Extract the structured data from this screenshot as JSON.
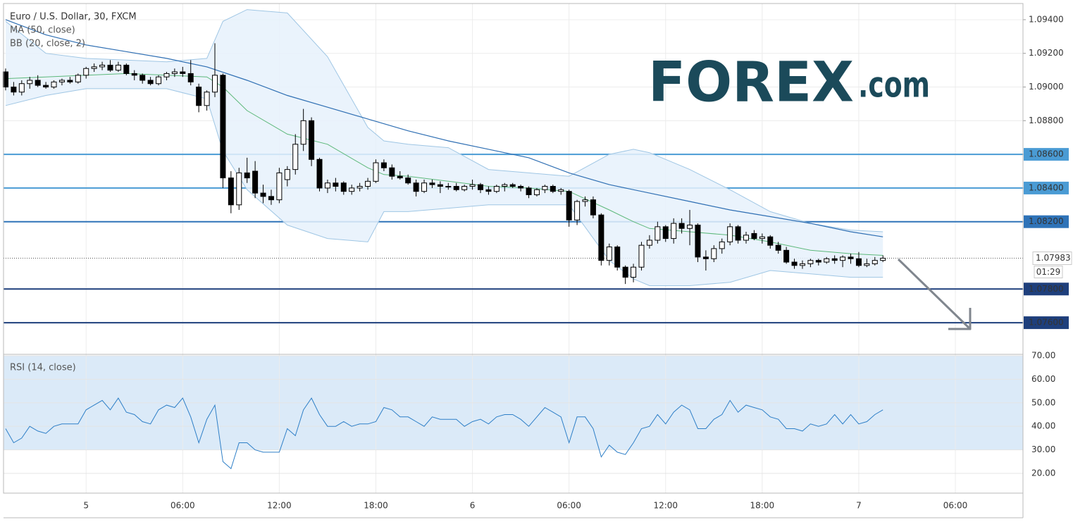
{
  "chart_data": {
    "type": "candlestick",
    "title": "Euro / U.S. Dollar, 30, FXCM",
    "brand": {
      "name": "FOREX",
      "suffix": ".com"
    },
    "xlim": [
      -0.26,
      126.4
    ],
    "xticks": [
      {
        "value": 10,
        "label": "5"
      },
      {
        "value": 22,
        "label": "06:00"
      },
      {
        "value": 34,
        "label": "12:00"
      },
      {
        "value": 46,
        "label": "18:00"
      },
      {
        "value": 58,
        "label": "6"
      },
      {
        "value": 70,
        "label": "06:00"
      },
      {
        "value": 82,
        "label": "12:00"
      },
      {
        "value": 94,
        "label": "18:00"
      },
      {
        "value": 106,
        "label": "7"
      },
      {
        "value": 118,
        "label": "06:00"
      }
    ],
    "ylim": [
      1.07412,
      1.09496
    ],
    "yticks": [
      {
        "value": 1.094,
        "label": "1.09400"
      },
      {
        "value": 1.092,
        "label": "1.09200"
      },
      {
        "value": 1.09,
        "label": "1.09000"
      },
      {
        "value": 1.088,
        "label": "1.08800"
      },
      {
        "value": 1.086,
        "label": "1.08600"
      },
      {
        "value": 1.084,
        "label": "1.08400"
      },
      {
        "value": 1.082,
        "label": "1.08200"
      },
      {
        "value": 1.078,
        "label": "1.07800"
      },
      {
        "value": 1.076,
        "label": "1.07600"
      }
    ],
    "grid": true,
    "up_color": "#ffffff",
    "down_color": "#000000",
    "levels": [
      {
        "value": 1.086,
        "color": "#4a9bd4"
      },
      {
        "value": 1.084,
        "color": "#4a9bd4"
      },
      {
        "value": 1.082,
        "color": "#2f73b8"
      },
      {
        "value": 1.078,
        "color": "#1e3f7c"
      },
      {
        "value": 1.076,
        "color": "#1e3f7c"
      }
    ],
    "last_price": 1.07983,
    "countdown": "01:29",
    "ohlc": [
      [
        1.0909,
        1.0911,
        1.0898,
        1.09
      ],
      [
        1.09,
        1.0903,
        1.0895,
        1.0897
      ],
      [
        1.0897,
        1.0904,
        1.0895,
        1.0902
      ],
      [
        1.0902,
        1.0906,
        1.0899,
        1.0904
      ],
      [
        1.0904,
        1.0907,
        1.09,
        1.0901
      ],
      [
        1.0901,
        1.0903,
        1.0899,
        1.09
      ],
      [
        1.09,
        1.0904,
        1.0899,
        1.0903
      ],
      [
        1.0903,
        1.0905,
        1.0901,
        1.0904
      ],
      [
        1.0904,
        1.0906,
        1.0902,
        1.0903
      ],
      [
        1.0903,
        1.0908,
        1.0902,
        1.0907
      ],
      [
        1.0907,
        1.0912,
        1.0905,
        1.0911
      ],
      [
        1.0911,
        1.0914,
        1.0909,
        1.0912
      ],
      [
        1.0912,
        1.0915,
        1.091,
        1.0913
      ],
      [
        1.0913,
        1.0916,
        1.0909,
        1.091
      ],
      [
        1.091,
        1.0915,
        1.0909,
        1.0913
      ],
      [
        1.0913,
        1.0914,
        1.0907,
        1.0908
      ],
      [
        1.0908,
        1.091,
        1.0904,
        1.0907
      ],
      [
        1.0907,
        1.0908,
        1.0902,
        1.0904
      ],
      [
        1.0904,
        1.0906,
        1.0901,
        1.0902
      ],
      [
        1.0902,
        1.0907,
        1.0901,
        1.0906
      ],
      [
        1.0906,
        1.0909,
        1.0904,
        1.0908
      ],
      [
        1.0908,
        1.0911,
        1.0906,
        1.0909
      ],
      [
        1.0909,
        1.0912,
        1.0906,
        1.0908
      ],
      [
        1.0908,
        1.0916,
        1.0901,
        1.0903
      ],
      [
        1.09,
        1.0902,
        1.0885,
        1.0889
      ],
      [
        1.0889,
        1.0898,
        1.0886,
        1.0897
      ],
      [
        1.0897,
        1.0926,
        1.0894,
        1.0907
      ],
      [
        1.0907,
        1.0908,
        1.084,
        1.0846
      ],
      [
        1.0846,
        1.085,
        1.0825,
        1.083
      ],
      [
        1.083,
        1.0852,
        1.0827,
        1.0849
      ],
      [
        1.0849,
        1.0858,
        1.0843,
        1.0846
      ],
      [
        1.085,
        1.0856,
        1.0834,
        1.0837
      ],
      [
        1.0837,
        1.0842,
        1.0831,
        1.0835
      ],
      [
        1.0835,
        1.0839,
        1.083,
        1.0833
      ],
      [
        1.0833,
        1.0852,
        1.0831,
        1.0849
      ],
      [
        1.0845,
        1.0853,
        1.0841,
        1.0851
      ],
      [
        1.0851,
        1.0872,
        1.0848,
        1.0866
      ],
      [
        1.0866,
        1.0887,
        1.0862,
        1.088
      ],
      [
        1.088,
        1.0882,
        1.0853,
        1.0857
      ],
      [
        1.0857,
        1.0858,
        1.0838,
        1.084
      ],
      [
        1.084,
        1.0845,
        1.0837,
        1.0843
      ],
      [
        1.0843,
        1.0846,
        1.0838,
        1.0841
      ],
      [
        1.0843,
        1.0844,
        1.0836,
        1.0838
      ],
      [
        1.0838,
        1.0842,
        1.0836,
        1.084
      ],
      [
        1.084,
        1.0843,
        1.0838,
        1.0841
      ],
      [
        1.0841,
        1.0846,
        1.0839,
        1.0844
      ],
      [
        1.0844,
        1.0857,
        1.0843,
        1.0855
      ],
      [
        1.0855,
        1.0857,
        1.085,
        1.0852
      ],
      [
        1.0852,
        1.0854,
        1.0845,
        1.0847
      ],
      [
        1.0847,
        1.085,
        1.0845,
        1.0846
      ],
      [
        1.0846,
        1.0848,
        1.0842,
        1.0843
      ],
      [
        1.0843,
        1.0845,
        1.0835,
        1.0838
      ],
      [
        1.0838,
        1.0845,
        1.0837,
        1.0843
      ],
      [
        1.0843,
        1.0845,
        1.084,
        1.0842
      ],
      [
        1.0842,
        1.0844,
        1.0837,
        1.0841
      ],
      [
        1.0841,
        1.0843,
        1.0839,
        1.0841
      ],
      [
        1.0841,
        1.0843,
        1.0838,
        1.0839
      ],
      [
        1.0839,
        1.0842,
        1.0838,
        1.0841
      ],
      [
        1.0841,
        1.0845,
        1.0839,
        1.0842
      ],
      [
        1.0842,
        1.0843,
        1.0837,
        1.0839
      ],
      [
        1.0839,
        1.0841,
        1.0836,
        1.0838
      ],
      [
        1.0838,
        1.0842,
        1.0837,
        1.0841
      ],
      [
        1.0841,
        1.0843,
        1.0838,
        1.0842
      ],
      [
        1.0842,
        1.0843,
        1.084,
        1.0841
      ],
      [
        1.0841,
        1.0842,
        1.0838,
        1.084
      ],
      [
        1.084,
        1.0841,
        1.0834,
        1.0836
      ],
      [
        1.0836,
        1.084,
        1.0835,
        1.0839
      ],
      [
        1.0839,
        1.0842,
        1.0837,
        1.0841
      ],
      [
        1.0841,
        1.0842,
        1.0837,
        1.0838
      ],
      [
        1.0838,
        1.084,
        1.0836,
        1.0839
      ],
      [
        1.0838,
        1.0839,
        1.0817,
        1.0821
      ],
      [
        1.0821,
        1.0833,
        1.0818,
        1.0832
      ],
      [
        1.0832,
        1.0835,
        1.0829,
        1.0833
      ],
      [
        1.0833,
        1.0835,
        1.0822,
        1.0824
      ],
      [
        1.0824,
        1.0825,
        1.0794,
        1.0797
      ],
      [
        1.0797,
        1.0807,
        1.0794,
        1.0805
      ],
      [
        1.0805,
        1.0806,
        1.0791,
        1.0793
      ],
      [
        1.0793,
        1.0794,
        1.0783,
        1.0787
      ],
      [
        1.0787,
        1.0795,
        1.0784,
        1.0793
      ],
      [
        1.0793,
        1.0808,
        1.0791,
        1.0806
      ],
      [
        1.0806,
        1.0812,
        1.0804,
        1.0809
      ],
      [
        1.0809,
        1.082,
        1.0807,
        1.0817
      ],
      [
        1.0817,
        1.0818,
        1.0808,
        1.081
      ],
      [
        1.081,
        1.0822,
        1.0807,
        1.0819
      ],
      [
        1.0819,
        1.0822,
        1.0813,
        1.0816
      ],
      [
        1.0816,
        1.0827,
        1.0806,
        1.0818
      ],
      [
        1.0818,
        1.0819,
        1.0796,
        1.0799
      ],
      [
        1.0799,
        1.0803,
        1.0791,
        1.0798
      ],
      [
        1.0798,
        1.0806,
        1.0796,
        1.0804
      ],
      [
        1.0804,
        1.081,
        1.0801,
        1.0808
      ],
      [
        1.0808,
        1.0819,
        1.0806,
        1.0817
      ],
      [
        1.0817,
        1.0818,
        1.0807,
        1.0809
      ],
      [
        1.0809,
        1.0814,
        1.0807,
        1.0812
      ],
      [
        1.0813,
        1.0815,
        1.0809,
        1.081
      ],
      [
        1.081,
        1.0813,
        1.0807,
        1.0811
      ],
      [
        1.0811,
        1.0812,
        1.0804,
        1.0806
      ],
      [
        1.0806,
        1.0808,
        1.0801,
        1.0803
      ],
      [
        1.0803,
        1.0805,
        1.0795,
        1.0796
      ],
      [
        1.0796,
        1.0798,
        1.0792,
        1.0794
      ],
      [
        1.0794,
        1.0797,
        1.0792,
        1.0795
      ],
      [
        1.0795,
        1.0798,
        1.0793,
        1.0797
      ],
      [
        1.0797,
        1.0798,
        1.0794,
        1.0796
      ],
      [
        1.0796,
        1.0799,
        1.0795,
        1.0798
      ],
      [
        1.0798,
        1.08,
        1.0795,
        1.0797
      ],
      [
        1.0797,
        1.08,
        1.0793,
        1.0799
      ],
      [
        1.0799,
        1.0801,
        1.0795,
        1.0798
      ],
      [
        1.0798,
        1.0802,
        1.0793,
        1.0794
      ],
      [
        1.0794,
        1.0798,
        1.0793,
        1.0795
      ],
      [
        1.0795,
        1.0799,
        1.0794,
        1.0797
      ],
      [
        1.0797,
        1.08,
        1.0796,
        1.07983
      ]
    ],
    "ma": {
      "label": "MA (50, close)",
      "color": "#2f6fb3",
      "x": [
        0,
        5,
        10,
        15,
        20,
        25,
        30,
        35,
        40,
        45,
        50,
        55,
        60,
        65,
        70,
        75,
        80,
        85,
        90,
        95,
        100,
        105,
        109
      ],
      "values": [
        1.094,
        1.0931,
        1.0925,
        1.0921,
        1.0917,
        1.0912,
        1.0904,
        1.0895,
        1.0888,
        1.0881,
        1.0874,
        1.0868,
        1.0863,
        1.0858,
        1.0849,
        1.0842,
        1.0837,
        1.0832,
        1.0827,
        1.0823,
        1.0819,
        1.0814,
        1.0811
      ]
    },
    "bb": {
      "label": "BB (20, close, 2)",
      "basis_color": "#5cb87a",
      "band_color": "#9fc6e4",
      "fill": "#e6f1fb",
      "x": [
        0,
        5,
        10,
        15,
        20,
        25,
        27,
        30,
        35,
        40,
        45,
        47,
        50,
        55,
        60,
        65,
        70,
        75,
        78,
        80,
        85,
        90,
        95,
        100,
        105,
        109
      ],
      "basis": [
        1.0905,
        1.0906,
        1.0907,
        1.0908,
        1.0907,
        1.0906,
        1.09,
        1.0886,
        1.0872,
        1.0866,
        1.0852,
        1.0848,
        1.0847,
        1.0844,
        1.0841,
        1.084,
        1.0838,
        1.0827,
        1.082,
        1.0816,
        1.0814,
        1.0812,
        1.0808,
        1.0803,
        1.0801,
        1.08
      ],
      "upper": [
        1.0939,
        1.092,
        1.0917,
        1.0916,
        1.0915,
        1.0917,
        1.0939,
        1.0946,
        1.0944,
        1.0918,
        1.0876,
        1.0868,
        1.0866,
        1.0864,
        1.0851,
        1.0849,
        1.0847,
        1.086,
        1.0863,
        1.0861,
        1.0851,
        1.0839,
        1.0826,
        1.0819,
        1.0815,
        1.0814
      ],
      "lower": [
        1.0889,
        1.0895,
        1.0899,
        1.0899,
        1.0899,
        1.0893,
        1.0862,
        1.0839,
        1.0818,
        1.081,
        1.0808,
        1.0826,
        1.0826,
        1.0828,
        1.083,
        1.083,
        1.083,
        1.0797,
        1.0786,
        1.0782,
        1.0782,
        1.0784,
        1.0791,
        1.0789,
        1.0787,
        1.0787
      ]
    },
    "rsi": {
      "label": "RSI (14, close)",
      "color": "#2e7fc7",
      "band": [
        30,
        70
      ],
      "band_color": "#dbeaf8",
      "ylim": [
        11.6,
        70.6
      ],
      "yticks": [
        {
          "value": 70,
          "label": "70.00"
        },
        {
          "value": 60,
          "label": "60.00"
        },
        {
          "value": 50,
          "label": "50.00"
        },
        {
          "value": 40,
          "label": "40.00"
        },
        {
          "value": 30,
          "label": "30.00"
        },
        {
          "value": 20,
          "label": "20.00"
        }
      ],
      "values": [
        39,
        33,
        35,
        40,
        38,
        37,
        40,
        41,
        41,
        41,
        47,
        49,
        51,
        47,
        52,
        46,
        45,
        42,
        41,
        47,
        49,
        48,
        52,
        44,
        33,
        43,
        49,
        25,
        22,
        33,
        33,
        30,
        29,
        29,
        29,
        39,
        36,
        47,
        52,
        45,
        40,
        40,
        42,
        40,
        41,
        41,
        42,
        48,
        47,
        44,
        44,
        42,
        40,
        44,
        43,
        43,
        43,
        40,
        42,
        43,
        41,
        44,
        45,
        45,
        43,
        40,
        44,
        48,
        46,
        44,
        33,
        44,
        44,
        39,
        27,
        32,
        29,
        28,
        33,
        39,
        40,
        45,
        41,
        46,
        49,
        47,
        39,
        39,
        43,
        45,
        51,
        46,
        49,
        48,
        47,
        44,
        43,
        39,
        39,
        38,
        41,
        40,
        41,
        45,
        41,
        45,
        41,
        42,
        45,
        47
      ]
    }
  }
}
